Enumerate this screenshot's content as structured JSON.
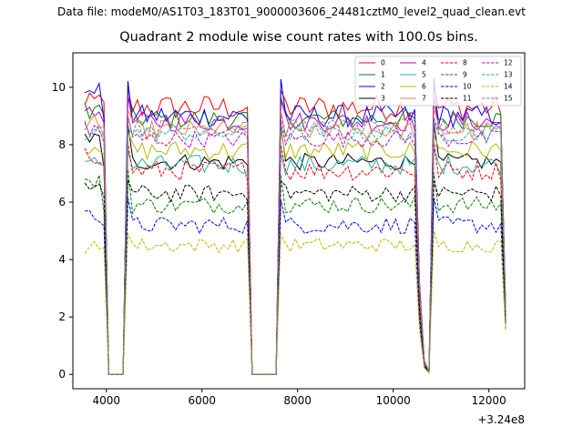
{
  "figure": {
    "suptitle": "Data file: modeM0/AS1T03_183T01_9000003606_24481cztM0_level2_quad_clean.evt",
    "title": "Quadrant 2 module wise count rates with 100.0s bins."
  },
  "chart_data": {
    "type": "line",
    "title": "Quadrant 2 module wise count rates with 100.0s bins.",
    "xlabel": "",
    "ylabel": "",
    "x_offset_label": "+3.24e8",
    "xlim": [
      3300,
      12750
    ],
    "ylim": [
      -0.5,
      11.2
    ],
    "xticks": [
      4000,
      6000,
      8000,
      10000,
      12000
    ],
    "yticks": [
      0,
      2,
      4,
      6,
      8,
      10
    ],
    "legend_position": "top-right",
    "x_start": 3550,
    "bin": 100,
    "n_bins": 89,
    "zero_bins": [
      5,
      6,
      7,
      8,
      35,
      36,
      37,
      38,
      39,
      40
    ],
    "dip_bins": [
      71,
      72
    ],
    "series": [
      {
        "name": "0",
        "color": "#ff0000",
        "dash": "solid",
        "level": 9.3,
        "noise": 0.45,
        "start_peak": 9.9,
        "end_val": 2.5
      },
      {
        "name": "1",
        "color": "#008000",
        "dash": "solid",
        "level": 8.9,
        "noise": 0.35,
        "start_peak": 9.6,
        "end_val": 2.3
      },
      {
        "name": "2",
        "color": "#0000ff",
        "dash": "solid",
        "level": 9.0,
        "noise": 0.4,
        "start_peak": 10.3,
        "end_val": 2.2
      },
      {
        "name": "3",
        "color": "#000000",
        "dash": "solid",
        "level": 7.4,
        "noise": 0.3,
        "start_peak": 8.6,
        "end_val": 2.0
      },
      {
        "name": "4",
        "color": "#c000c0",
        "dash": "solid",
        "level": 8.8,
        "noise": 0.35,
        "start_peak": 9.6,
        "end_val": 2.4
      },
      {
        "name": "5",
        "color": "#20b2aa",
        "dash": "solid",
        "level": 7.3,
        "noise": 0.35,
        "start_peak": 7.8,
        "end_val": 2.0
      },
      {
        "name": "6",
        "color": "#b8b800",
        "dash": "solid",
        "level": 7.8,
        "noise": 0.35,
        "start_peak": 8.4,
        "end_val": 2.1
      },
      {
        "name": "7",
        "color": "#ff7f50",
        "dash": "solid",
        "level": 8.5,
        "noise": 0.35,
        "start_peak": 9.2,
        "end_val": 2.3
      },
      {
        "name": "8",
        "color": "#ff0000",
        "dash": "dashed",
        "level": 7.1,
        "noise": 0.35,
        "start_peak": 8.0,
        "end_val": 2.0
      },
      {
        "name": "9",
        "color": "#008000",
        "dash": "dashed",
        "level": 5.9,
        "noise": 0.3,
        "start_peak": 7.1,
        "end_val": 1.8
      },
      {
        "name": "10",
        "color": "#0000ff",
        "dash": "dashed",
        "level": 5.2,
        "noise": 0.3,
        "start_peak": 6.0,
        "end_val": 1.6
      },
      {
        "name": "11",
        "color": "#000000",
        "dash": "dashed",
        "level": 6.3,
        "noise": 0.3,
        "start_peak": 6.8,
        "end_val": 1.8
      },
      {
        "name": "12",
        "color": "#c000c0",
        "dash": "dashed",
        "level": 8.2,
        "noise": 0.3,
        "start_peak": 8.9,
        "end_val": 2.2
      },
      {
        "name": "13",
        "color": "#20b2aa",
        "dash": "dashed",
        "level": 8.4,
        "noise": 0.3,
        "start_peak": 8.7,
        "end_val": 2.2
      },
      {
        "name": "14",
        "color": "#b8b800",
        "dash": "dashed",
        "level": 4.5,
        "noise": 0.25,
        "start_peak": 4.9,
        "end_val": 1.5
      },
      {
        "name": "15",
        "color": "#808080",
        "dash": "dashed",
        "level": 8.6,
        "noise": 0.3,
        "start_peak": 9.0,
        "end_val": 2.3
      }
    ]
  }
}
